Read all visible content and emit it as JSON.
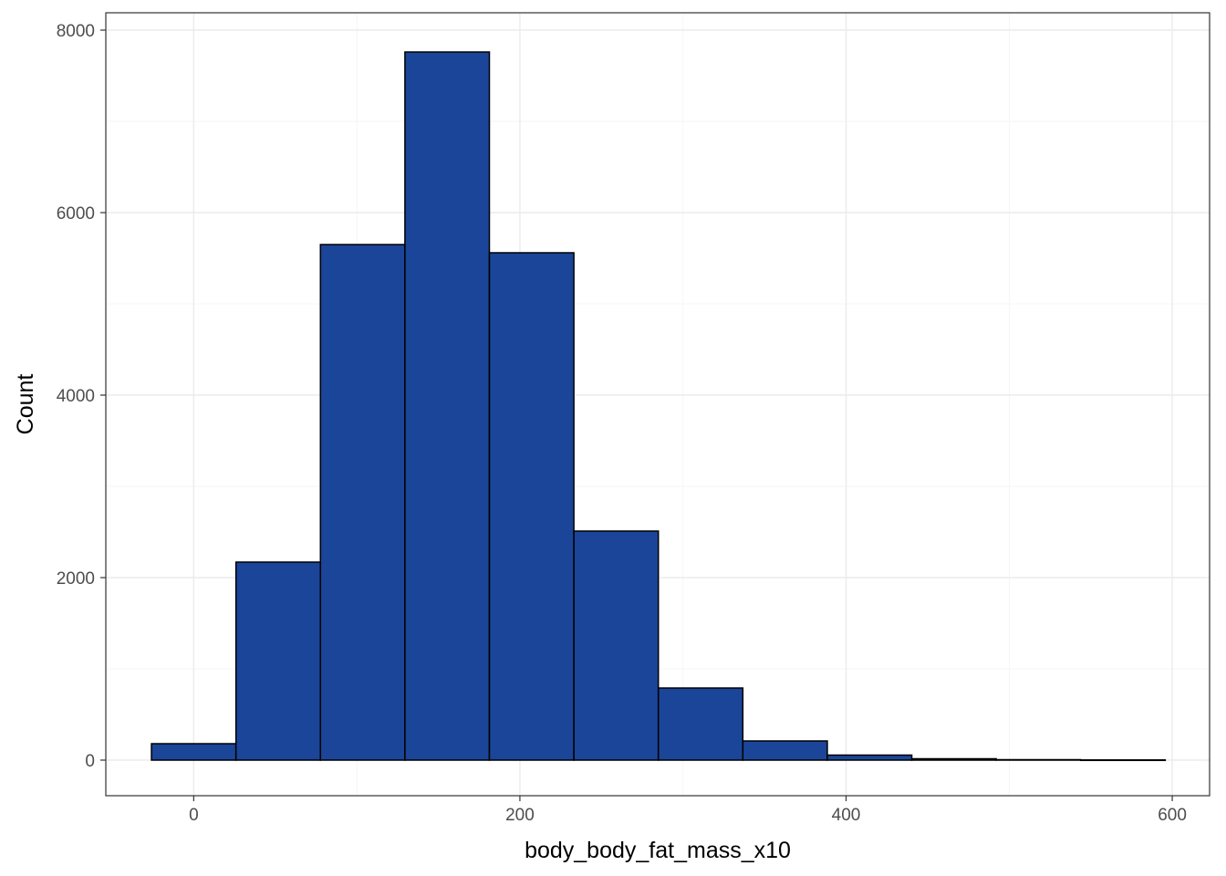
{
  "chart_data": {
    "type": "bar",
    "subtype": "histogram",
    "xlabel": "body_body_fat_mass_x10",
    "ylabel": "Count",
    "xlim": [
      -53.9,
      622.9
    ],
    "ylim": [
      -390,
      8190
    ],
    "x_ticks": [
      0,
      200,
      400,
      600
    ],
    "y_ticks": [
      0,
      2000,
      4000,
      6000,
      8000
    ],
    "x_tick_labels": [
      "0",
      "200",
      "400",
      "600"
    ],
    "y_tick_labels": [
      "0",
      "2000",
      "4000",
      "6000",
      "8000"
    ],
    "bin_width": 51.8,
    "bins": [
      {
        "x0": -25.9,
        "x1": 25.9,
        "count": 180
      },
      {
        "x0": 25.9,
        "x1": 77.7,
        "count": 2170
      },
      {
        "x0": 77.7,
        "x1": 129.5,
        "count": 5650
      },
      {
        "x0": 129.5,
        "x1": 181.3,
        "count": 7760
      },
      {
        "x0": 181.3,
        "x1": 233.1,
        "count": 5560
      },
      {
        "x0": 233.1,
        "x1": 284.9,
        "count": 2510
      },
      {
        "x0": 284.9,
        "x1": 336.7,
        "count": 790
      },
      {
        "x0": 336.7,
        "x1": 388.5,
        "count": 210
      },
      {
        "x0": 388.5,
        "x1": 440.3,
        "count": 55
      },
      {
        "x0": 440.3,
        "x1": 492.1,
        "count": 15
      },
      {
        "x0": 492.1,
        "x1": 543.9,
        "count": 5
      },
      {
        "x0": 543.9,
        "x1": 595.7,
        "count": 2
      }
    ],
    "bar_fill": "#1A4599",
    "bar_outline": "#000000",
    "grid": true,
    "legend": "none"
  }
}
